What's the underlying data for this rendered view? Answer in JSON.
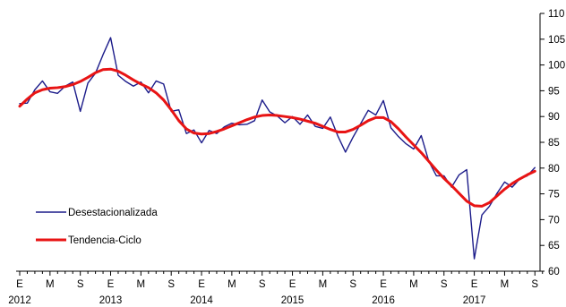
{
  "chart_data": {
    "type": "line",
    "x_month_labels": [
      "E",
      "M",
      "S",
      "E",
      "M",
      "S",
      "E",
      "M",
      "S",
      "E",
      "M",
      "S",
      "E",
      "M",
      "S",
      "E",
      "M",
      "S"
    ],
    "x_year_labels": [
      {
        "label": "2012",
        "at": "E"
      },
      {
        "label": "2013",
        "at": "E"
      },
      {
        "label": "2014",
        "at": "E"
      },
      {
        "label": "2015",
        "at": "E"
      },
      {
        "label": "2016",
        "at": "E"
      },
      {
        "label": "2017",
        "at": "E"
      }
    ],
    "y_tick_labels": [
      "60",
      "65",
      "70",
      "75",
      "80",
      "85",
      "90",
      "95",
      "100",
      "105",
      "110"
    ],
    "ylim": [
      60,
      110
    ],
    "y_axis_side": "right",
    "legend_position": "lower-left",
    "series": [
      {
        "name": "Desestacionalizada",
        "color": "#1c1c8a",
        "values": [
          92.5,
          92.6,
          95.2,
          96.9,
          94.8,
          94.5,
          95.9,
          96.7,
          91.0,
          96.5,
          98.4,
          102.0,
          105.3,
          98.0,
          96.8,
          95.9,
          96.7,
          94.6,
          96.9,
          96.3,
          91.0,
          91.3,
          86.7,
          87.4,
          84.9,
          87.3,
          86.7,
          88.0,
          88.7,
          88.4,
          88.5,
          89.2,
          93.2,
          90.9,
          90.1,
          88.8,
          90.0,
          88.5,
          90.3,
          88.1,
          87.7,
          89.9,
          86.2,
          83.1,
          86.0,
          88.6,
          91.2,
          90.3,
          93.1,
          87.8,
          86.1,
          84.7,
          83.7,
          86.3,
          81.3,
          78.5,
          78.5,
          76.3,
          78.7,
          79.7,
          62.4,
          70.9,
          72.6,
          75.1,
          77.3,
          76.3,
          77.9,
          78.5,
          80.1
        ]
      },
      {
        "name": "Tendencia-Ciclo",
        "color": "#e81414",
        "values": [
          92.0,
          93.4,
          94.6,
          95.2,
          95.5,
          95.6,
          95.8,
          96.2,
          96.8,
          97.6,
          98.5,
          99.1,
          99.2,
          98.8,
          98.0,
          97.1,
          96.3,
          95.6,
          94.6,
          93.2,
          91.3,
          89.2,
          87.6,
          86.8,
          86.6,
          86.7,
          87.1,
          87.6,
          88.2,
          88.8,
          89.4,
          89.9,
          90.2,
          90.3,
          90.2,
          90.0,
          89.8,
          89.5,
          89.1,
          88.7,
          88.1,
          87.5,
          87.0,
          87.0,
          87.5,
          88.3,
          89.2,
          89.8,
          89.8,
          89.0,
          87.6,
          86.0,
          84.5,
          83.0,
          81.3,
          79.6,
          78.0,
          76.6,
          75.1,
          73.6,
          72.7,
          72.6,
          73.3,
          74.6,
          75.9,
          77.0,
          77.9,
          78.7,
          79.4
        ]
      }
    ]
  }
}
